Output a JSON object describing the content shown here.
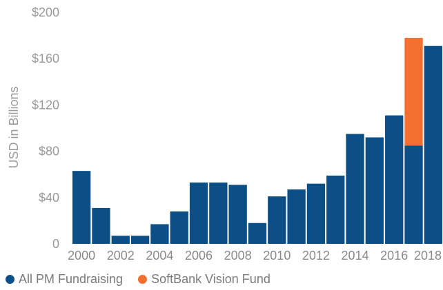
{
  "chart_data": {
    "type": "bar",
    "stacked": true,
    "ylabel": "USD in Billions",
    "ylim": [
      0,
      200
    ],
    "yticks": [
      0,
      40,
      80,
      120,
      160,
      200
    ],
    "ytick_labels": [
      "0",
      "$40",
      "$80",
      "$120",
      "$160",
      "$200"
    ],
    "categories": [
      "2000",
      "2001",
      "2002",
      "2003",
      "2004",
      "2005",
      "2006",
      "2007",
      "2008",
      "2009",
      "2010",
      "2011",
      "2012",
      "2013",
      "2014",
      "2015",
      "2016",
      "2017",
      "2018"
    ],
    "xtick_labels": [
      "2000",
      "2002",
      "2004",
      "2006",
      "2008",
      "2010",
      "2012",
      "2014",
      "2016",
      "2018"
    ],
    "series": [
      {
        "name": "All PM Fundraising",
        "color": "#0b4f86",
        "values": [
          63,
          31,
          7,
          7,
          17,
          28,
          53,
          53,
          51,
          18,
          41,
          47,
          52,
          59,
          95,
          92,
          111,
          85,
          171
        ]
      },
      {
        "name": "SoftBank Vision Fund",
        "color": "#f26f2f",
        "values": [
          0,
          0,
          0,
          0,
          0,
          0,
          0,
          0,
          0,
          0,
          0,
          0,
          0,
          0,
          0,
          0,
          0,
          93,
          0
        ]
      }
    ],
    "legend_position": "bottom-left",
    "grid": false
  }
}
